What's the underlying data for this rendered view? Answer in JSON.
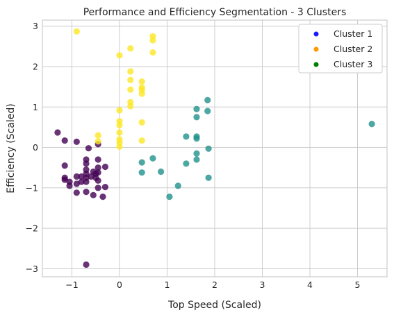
{
  "chart_data": {
    "type": "scatter",
    "title": "Performance and Efficiency Segmentation - 3 Clusters",
    "xlabel": "Top Speed (Scaled)",
    "ylabel": "Efficiency (Scaled)",
    "xlim": [
      -1.62,
      5.62
    ],
    "ylim": [
      -3.2,
      3.15
    ],
    "xticks": [
      -1,
      0,
      1,
      2,
      3,
      4,
      5
    ],
    "yticks": [
      -3,
      -2,
      -1,
      0,
      1,
      2,
      3
    ],
    "xtick_labels": [
      "−1",
      "0",
      "1",
      "2",
      "3",
      "4",
      "5"
    ],
    "ytick_labels": [
      "−3",
      "−2",
      "−1",
      "0",
      "1",
      "2",
      "3"
    ],
    "grid": true,
    "legend_position": "top-right",
    "legend": [
      {
        "label": "Cluster 1",
        "color": "#1a1aff"
      },
      {
        "label": "Cluster 2",
        "color": "#ff9900"
      },
      {
        "label": "Cluster 3",
        "color": "#008000"
      }
    ],
    "series": [
      {
        "color": "#440154",
        "points": [
          [
            -1.3,
            0.37
          ],
          [
            -1.15,
            0.17
          ],
          [
            -0.9,
            0.14
          ],
          [
            -0.65,
            -0.02
          ],
          [
            -0.45,
            0.08
          ],
          [
            -1.15,
            -0.45
          ],
          [
            -1.15,
            -0.75
          ],
          [
            -1.15,
            -0.8
          ],
          [
            -1.05,
            -0.85
          ],
          [
            -1.05,
            -0.95
          ],
          [
            -0.9,
            -0.72
          ],
          [
            -0.9,
            -0.9
          ],
          [
            -0.9,
            -1.12
          ],
          [
            -0.8,
            -0.72
          ],
          [
            -0.8,
            -0.85
          ],
          [
            -0.7,
            -0.3
          ],
          [
            -0.7,
            -0.4
          ],
          [
            -0.7,
            -0.55
          ],
          [
            -0.7,
            -0.65
          ],
          [
            -0.7,
            -0.75
          ],
          [
            -0.7,
            -0.85
          ],
          [
            -0.7,
            -1.1
          ],
          [
            -0.6,
            -0.72
          ],
          [
            -0.55,
            -0.6
          ],
          [
            -0.55,
            -1.18
          ],
          [
            -0.5,
            -0.65
          ],
          [
            -0.5,
            -0.75
          ],
          [
            -0.45,
            -0.3
          ],
          [
            -0.45,
            -0.5
          ],
          [
            -0.45,
            -0.62
          ],
          [
            -0.45,
            -0.82
          ],
          [
            -0.45,
            -1.0
          ],
          [
            -0.35,
            -1.22
          ],
          [
            -0.3,
            -0.48
          ],
          [
            -0.3,
            -0.98
          ],
          [
            -0.7,
            -2.9
          ]
        ]
      },
      {
        "color": "#21918c",
        "points": [
          [
            0.47,
            -0.37
          ],
          [
            0.47,
            -0.62
          ],
          [
            0.7,
            -0.27
          ],
          [
            0.87,
            -0.6
          ],
          [
            1.05,
            -1.22
          ],
          [
            1.23,
            -0.95
          ],
          [
            1.4,
            0.27
          ],
          [
            1.4,
            -0.4
          ],
          [
            1.62,
            0.95
          ],
          [
            1.62,
            0.75
          ],
          [
            1.62,
            0.27
          ],
          [
            1.62,
            0.22
          ],
          [
            1.62,
            -0.15
          ],
          [
            1.62,
            -0.3
          ],
          [
            1.85,
            1.17
          ],
          [
            1.85,
            0.9
          ],
          [
            1.87,
            -0.03
          ],
          [
            1.87,
            -0.75
          ],
          [
            5.3,
            0.58
          ]
        ]
      },
      {
        "color": "#fde725",
        "points": [
          [
            -0.9,
            2.87
          ],
          [
            -0.45,
            0.3
          ],
          [
            -0.45,
            0.15
          ],
          [
            0.0,
            2.28
          ],
          [
            0.0,
            0.92
          ],
          [
            0.0,
            0.65
          ],
          [
            0.0,
            0.55
          ],
          [
            0.0,
            0.37
          ],
          [
            0.0,
            0.2
          ],
          [
            0.0,
            0.12
          ],
          [
            0.0,
            0.02
          ],
          [
            0.23,
            2.45
          ],
          [
            0.23,
            1.88
          ],
          [
            0.23,
            1.67
          ],
          [
            0.23,
            1.43
          ],
          [
            0.23,
            1.12
          ],
          [
            0.23,
            1.02
          ],
          [
            0.47,
            1.63
          ],
          [
            0.47,
            1.48
          ],
          [
            0.47,
            1.43
          ],
          [
            0.47,
            1.33
          ],
          [
            0.47,
            0.62
          ],
          [
            0.47,
            0.17
          ],
          [
            0.7,
            2.75
          ],
          [
            0.7,
            2.65
          ],
          [
            0.7,
            2.35
          ]
        ]
      }
    ]
  }
}
